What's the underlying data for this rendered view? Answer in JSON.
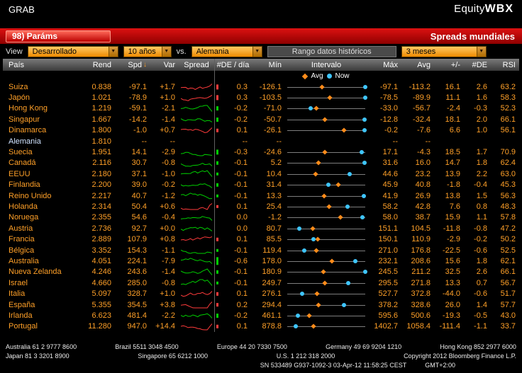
{
  "titlebar": {
    "command": "GRAB",
    "market": "Equity",
    "function": "WBX"
  },
  "menubar": {
    "params_button": "98) Paráms",
    "screen_title": "Spreads mundiales"
  },
  "toolbar": {
    "view_label": "View",
    "market_type": "Desarrollado",
    "tenor": "10 años",
    "vs_label": "vs.",
    "base_country": "Alemania",
    "range_field": "Rango datos históricos",
    "period": "3 meses"
  },
  "icons": {
    "dropdown_arrow": "▼",
    "sort_down": "↓"
  },
  "colors": {
    "amber": "#ffa028",
    "menubar_red": "#c00000",
    "positive_green": "#00cf00",
    "negative_red": "#ff3b3b",
    "now_blue": "#3fc6ff",
    "avg_orange": "#ff8c1a"
  },
  "table": {
    "headers": {
      "pais": "País",
      "rend": "Rend",
      "spd": "Spd",
      "var": "Var",
      "spread": "Spread",
      "de_dia": "#DE / día",
      "min": "Mín",
      "intervalo": "Intervalo",
      "max": "Máx",
      "avg": "Avg",
      "pm": "+/-",
      "de": "#DE",
      "rsi": "RSI"
    },
    "legend": {
      "avg": "Avg",
      "now": "Now"
    },
    "rows": [
      {
        "pais": "Suiza",
        "rend": "0.838",
        "spd": "-97.1",
        "var": "+1.7",
        "trend": "up",
        "de_dia": "0.3",
        "min": "-126.1",
        "max": "-97.1",
        "avg": "-113.2",
        "pm": "16.1",
        "de": "2.6",
        "rsi": "63.2"
      },
      {
        "pais": "Japón",
        "rend": "1.021",
        "spd": "-78.9",
        "var": "+1.0",
        "trend": "up",
        "de_dia": "0.3",
        "min": "-103.5",
        "max": "-78.5",
        "avg": "-89.9",
        "pm": "11.1",
        "de": "1.6",
        "rsi": "58.3"
      },
      {
        "pais": "Hong Kong",
        "rend": "1.219",
        "spd": "-59.1",
        "var": "-2.1",
        "trend": "down",
        "de_dia": "-0.2",
        "min": "-71.0",
        "max": "-33.0",
        "avg": "-56.7",
        "pm": "-2.4",
        "de": "-0.3",
        "rsi": "52.3"
      },
      {
        "pais": "Singapur",
        "rend": "1.667",
        "spd": "-14.2",
        "var": "-1.4",
        "trend": "down",
        "de_dia": "-0.2",
        "min": "-50.7",
        "max": "-12.8",
        "avg": "-32.4",
        "pm": "18.1",
        "de": "2.0",
        "rsi": "66.1"
      },
      {
        "pais": "Dinamarca",
        "rend": "1.800",
        "spd": "-1.0",
        "var": "+0.7",
        "trend": "up",
        "de_dia": "0.1",
        "min": "-26.1",
        "max": "-0.2",
        "avg": "-7.6",
        "pm": "6.6",
        "de": "1.0",
        "rsi": "56.1"
      },
      {
        "pais": "Alemania",
        "rend": "1.810",
        "spd": "--",
        "var": "--",
        "trend": "none",
        "de_dia": "--",
        "min": "--",
        "max": "--",
        "avg": "--",
        "pm": "",
        "de": "",
        "rsi": "",
        "highlight": true
      },
      {
        "pais": "Suecia",
        "rend": "1.951",
        "spd": "14.1",
        "var": "-2.9",
        "trend": "down",
        "de_dia": "-0.3",
        "min": "-24.6",
        "max": "17.1",
        "avg": "-4.3",
        "pm": "18.5",
        "de": "1.7",
        "rsi": "70.9"
      },
      {
        "pais": "Canadá",
        "rend": "2.116",
        "spd": "30.7",
        "var": "-0.8",
        "trend": "down",
        "de_dia": "-0.1",
        "min": "5.2",
        "max": "31.6",
        "avg": "16.0",
        "pm": "14.7",
        "de": "1.8",
        "rsi": "62.4"
      },
      {
        "pais": "EEUU",
        "rend": "2.180",
        "spd": "37.1",
        "var": "-1.0",
        "trend": "down",
        "de_dia": "-0.1",
        "min": "10.4",
        "max": "44.6",
        "avg": "23.2",
        "pm": "13.9",
        "de": "2.2",
        "rsi": "63.0"
      },
      {
        "pais": "Finlandia",
        "rend": "2.200",
        "spd": "39.0",
        "var": "-0.2",
        "trend": "down",
        "de_dia": "-0.1",
        "min": "31.4",
        "max": "45.9",
        "avg": "40.8",
        "pm": "-1.8",
        "de": "-0.4",
        "rsi": "45.3"
      },
      {
        "pais": "Reino Unido",
        "rend": "2.217",
        "spd": "40.7",
        "var": "-1.2",
        "trend": "down",
        "de_dia": "-0.1",
        "min": "13.3",
        "max": "41.9",
        "avg": "26.9",
        "pm": "13.8",
        "de": "1.5",
        "rsi": "56.3"
      },
      {
        "pais": "Holanda",
        "rend": "2.314",
        "spd": "50.4",
        "var": "+0.6",
        "trend": "up",
        "de_dia": "0.1",
        "min": "25.4",
        "max": "58.2",
        "avg": "42.8",
        "pm": "7.6",
        "de": "0.8",
        "rsi": "48.3"
      },
      {
        "pais": "Noruega",
        "rend": "2.355",
        "spd": "54.6",
        "var": "-0.4",
        "trend": "down",
        "de_dia": "0.0",
        "min": "-1.2",
        "max": "58.0",
        "avg": "38.7",
        "pm": "15.9",
        "de": "1.1",
        "rsi": "57.8"
      },
      {
        "pais": "Austria",
        "rend": "2.736",
        "spd": "92.7",
        "var": "+0.0",
        "trend": "down",
        "de_dia": "0.0",
        "min": "80.7",
        "max": "151.1",
        "avg": "104.5",
        "pm": "-11.8",
        "de": "-0.8",
        "rsi": "47.2"
      },
      {
        "pais": "Francia",
        "rend": "2.889",
        "spd": "107.9",
        "var": "+0.8",
        "trend": "up",
        "de_dia": "0.1",
        "min": "85.5",
        "max": "150.1",
        "avg": "110.9",
        "pm": "-2.9",
        "de": "-0.2",
        "rsi": "50.2"
      },
      {
        "pais": "Bélgica",
        "rend": "3.352",
        "spd": "154.3",
        "var": "-1.1",
        "trend": "down",
        "de_dia": "-0.1",
        "min": "119.4",
        "max": "271.0",
        "avg": "176.8",
        "pm": "-22.5",
        "de": "-0.6",
        "rsi": "52.5"
      },
      {
        "pais": "Australia",
        "rend": "4.051",
        "spd": "224.1",
        "var": "-7.9",
        "trend": "down",
        "de_dia": "-0.6",
        "min": "178.0",
        "max": "232.1",
        "avg": "208.6",
        "pm": "15.6",
        "de": "1.8",
        "rsi": "62.1"
      },
      {
        "pais": "Nueva Zelanda",
        "rend": "4.246",
        "spd": "243.6",
        "var": "-1.4",
        "trend": "down",
        "de_dia": "-0.1",
        "min": "180.9",
        "max": "245.5",
        "avg": "211.2",
        "pm": "32.5",
        "de": "2.6",
        "rsi": "66.1"
      },
      {
        "pais": "Israel",
        "rend": "4.660",
        "spd": "285.0",
        "var": "-0.8",
        "trend": "down",
        "de_dia": "-0.1",
        "min": "249.7",
        "max": "295.5",
        "avg": "271.8",
        "pm": "13.3",
        "de": "0.7",
        "rsi": "56.7"
      },
      {
        "pais": "Italia",
        "rend": "5.097",
        "spd": "328.7",
        "var": "+1.0",
        "trend": "up",
        "de_dia": "0.1",
        "min": "276.1",
        "max": "527.7",
        "avg": "372.8",
        "pm": "-44.0",
        "de": "-0.6",
        "rsi": "51.7"
      },
      {
        "pais": "España",
        "rend": "5.355",
        "spd": "354.5",
        "var": "+3.8",
        "trend": "up",
        "de_dia": "0.2",
        "min": "294.4",
        "max": "378.2",
        "avg": "328.6",
        "pm": "26.0",
        "de": "1.4",
        "rsi": "57.7"
      },
      {
        "pais": "Irlanda",
        "rend": "6.623",
        "spd": "481.4",
        "var": "-2.2",
        "trend": "down",
        "de_dia": "-0.2",
        "min": "461.1",
        "max": "595.6",
        "avg": "500.6",
        "pm": "-19.3",
        "de": "-0.5",
        "rsi": "43.0"
      },
      {
        "pais": "Portugal",
        "rend": "11.280",
        "spd": "947.0",
        "var": "+14.4",
        "trend": "up",
        "de_dia": "0.1",
        "min": "878.8",
        "max": "1402.7",
        "avg": "1058.4",
        "pm": "-111.4",
        "de": "-1.1",
        "rsi": "33.7"
      }
    ]
  },
  "footer": {
    "line1": [
      "Australia 61 2 9777 8600",
      "Brazil 5511 3048 4500",
      "Europe 44 20 7330 7500",
      "Germany 49 69 9204 1210",
      "Hong Kong 852 2977 6000"
    ],
    "line2": [
      "Japan 81 3 3201 8900",
      "Singapore 65 6212 1000",
      "U.S. 1 212 318 2000",
      "Copyright 2012 Bloomberg Finance L.P."
    ],
    "sn_left": "SN 533489 G937-1092-3 03-Apr-12 11:58:25 CEST",
    "sn_right": "GMT+2:00"
  }
}
